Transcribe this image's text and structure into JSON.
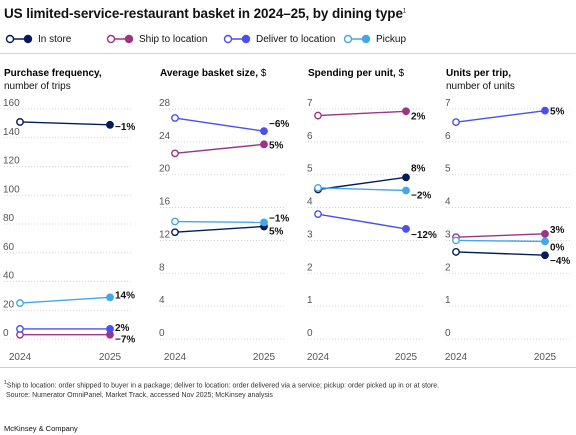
{
  "title": "US limited-service-restaurant basket in 2024–25, by dining type",
  "title_sup": "1",
  "legend": [
    {
      "label": "In store",
      "color": "#051c5c"
    },
    {
      "label": "Ship to location",
      "color": "#9b3584"
    },
    {
      "label": "Deliver to location",
      "color": "#4a4ff0"
    },
    {
      "label": "Pickup",
      "color": "#46a6ea"
    }
  ],
  "footnote": {
    "sup": "1",
    "text": "Ship to location: order shipped to buyer in a package; deliver to location: order delivered via a service; pickup: order picked up in or at store.",
    "source": "Source: Numerator OmniPanel, Market Track, accessed Nov 2025; McKinsey analysis"
  },
  "brand": "McKinsey & Company",
  "chart_data": [
    {
      "type": "line",
      "title": "Purchase frequency,",
      "subtitle": "number of trips",
      "x": [
        "2024",
        "2025"
      ],
      "ylim": [
        0,
        160
      ],
      "yticks": [
        0,
        20,
        40,
        60,
        80,
        100,
        120,
        140,
        160
      ],
      "series": [
        {
          "name": "In store",
          "values": [
            151,
            149
          ],
          "change": "−1%"
        },
        {
          "name": "Ship to location",
          "values": [
            3,
            3
          ],
          "change": "−7%"
        },
        {
          "name": "Deliver to location",
          "values": [
            7,
            7
          ],
          "change": "2%"
        },
        {
          "name": "Pickup",
          "values": [
            25,
            29
          ],
          "change": "14%"
        }
      ]
    },
    {
      "type": "line",
      "title": "Average basket size,",
      "title_unit": "$",
      "x": [
        "2024",
        "2025"
      ],
      "ylim": [
        0,
        28
      ],
      "yticks": [
        0,
        4,
        8,
        12,
        16,
        20,
        24,
        28
      ],
      "series": [
        {
          "name": "In store",
          "values": [
            13.0,
            13.7
          ],
          "change": "5%"
        },
        {
          "name": "Ship to location",
          "values": [
            22.6,
            23.7
          ],
          "change": "5%"
        },
        {
          "name": "Deliver to location",
          "values": [
            26.9,
            25.3
          ],
          "change": "−6%"
        },
        {
          "name": "Pickup",
          "values": [
            14.3,
            14.2
          ],
          "change": "−1%"
        }
      ]
    },
    {
      "type": "line",
      "title": "Spending per unit,",
      "title_unit": "$",
      "x": [
        "2024",
        "2025"
      ],
      "ylim": [
        0,
        7
      ],
      "yticks": [
        0,
        1,
        2,
        3,
        4,
        5,
        6,
        7
      ],
      "series": [
        {
          "name": "In store",
          "values": [
            4.55,
            4.92
          ],
          "change": "8%"
        },
        {
          "name": "Ship to location",
          "values": [
            6.8,
            6.93
          ],
          "change": "2%"
        },
        {
          "name": "Deliver to location",
          "values": [
            3.8,
            3.35
          ],
          "change": "−12%"
        },
        {
          "name": "Pickup",
          "values": [
            4.6,
            4.52
          ],
          "change": "−2%"
        }
      ]
    },
    {
      "type": "line",
      "title": "Units per trip,",
      "subtitle": "number of units",
      "x": [
        "2024",
        "2025"
      ],
      "ylim": [
        0,
        7
      ],
      "yticks": [
        0,
        1,
        2,
        3,
        4,
        5,
        6,
        7
      ],
      "series": [
        {
          "name": "In store",
          "values": [
            2.65,
            2.55
          ],
          "change": "−4%"
        },
        {
          "name": "Ship to location",
          "values": [
            3.1,
            3.2
          ],
          "change": "3%"
        },
        {
          "name": "Deliver to location",
          "values": [
            6.6,
            6.95
          ],
          "change": "5%"
        },
        {
          "name": "Pickup",
          "values": [
            3.0,
            2.97
          ],
          "change": "0%"
        }
      ]
    }
  ]
}
